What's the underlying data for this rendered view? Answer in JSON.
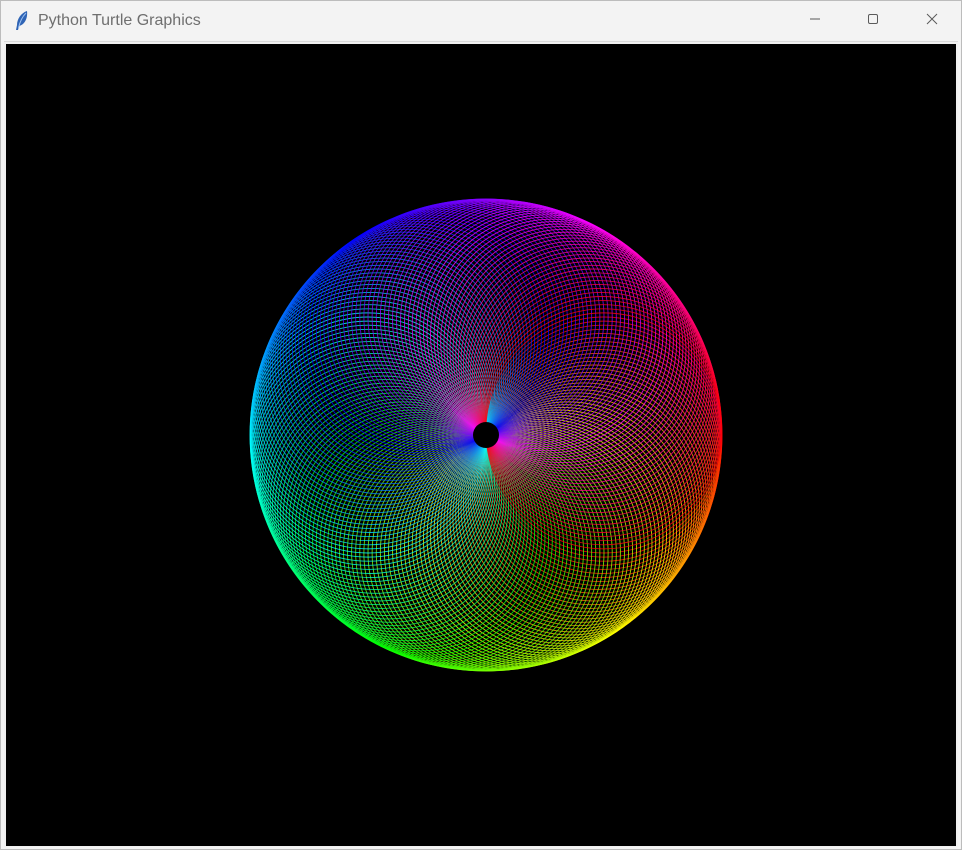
{
  "window": {
    "title": "Python Turtle Graphics",
    "controls": {
      "minimize_icon": "minimize-icon",
      "maximize_icon": "maximize-icon",
      "close_icon": "close-icon"
    },
    "app_icon": "feather-icon"
  },
  "canvas": {
    "background": "#000000",
    "drawing": "rainbow spirograph"
  }
}
